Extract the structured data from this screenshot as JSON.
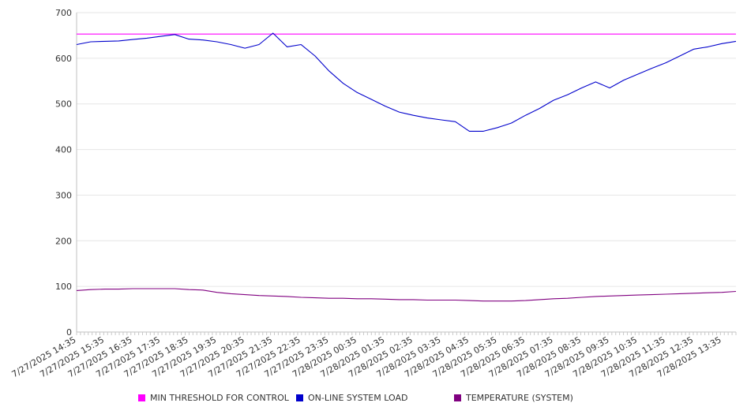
{
  "chart_data": {
    "type": "line",
    "title": "",
    "xlabel": "",
    "ylabel": "",
    "ylim": [
      0,
      700
    ],
    "yticks": [
      0,
      100,
      200,
      300,
      400,
      500,
      600,
      700
    ],
    "grid": "horizontal",
    "legend_position": "bottom",
    "x_tick_labels": [
      "7/27/2025 14:35",
      "7/27/2025 15:35",
      "7/27/2025 16:35",
      "7/27/2025 17:35",
      "7/27/2025 18:35",
      "7/27/2025 19:35",
      "7/27/2025 20:35",
      "7/27/2025 21:35",
      "7/27/2025 22:35",
      "7/27/2025 23:35",
      "7/28/2025 00:35",
      "7/28/2025 01:35",
      "7/28/2025 02:35",
      "7/28/2025 03:35",
      "7/28/2025 04:35",
      "7/28/2025 05:35",
      "7/28/2025 06:35",
      "7/28/2025 07:35",
      "7/28/2025 08:35",
      "7/28/2025 09:35",
      "7/28/2025 10:35",
      "7/28/2025 11:35",
      "7/28/2025 12:35",
      "7/28/2025 13:35"
    ],
    "x": [
      "7/27/2025 14:35",
      "7/27/2025 15:05",
      "7/27/2025 15:35",
      "7/27/2025 16:05",
      "7/27/2025 16:35",
      "7/27/2025 17:05",
      "7/27/2025 17:35",
      "7/27/2025 18:05",
      "7/27/2025 18:35",
      "7/27/2025 19:05",
      "7/27/2025 19:35",
      "7/27/2025 20:05",
      "7/27/2025 20:35",
      "7/27/2025 21:05",
      "7/27/2025 21:35",
      "7/27/2025 22:05",
      "7/27/2025 22:35",
      "7/27/2025 23:05",
      "7/27/2025 23:35",
      "7/28/2025 00:05",
      "7/28/2025 00:35",
      "7/28/2025 01:05",
      "7/28/2025 01:35",
      "7/28/2025 02:05",
      "7/28/2025 02:35",
      "7/28/2025 03:05",
      "7/28/2025 03:35",
      "7/28/2025 04:05",
      "7/28/2025 04:35",
      "7/28/2025 05:05",
      "7/28/2025 05:35",
      "7/28/2025 06:05",
      "7/28/2025 06:35",
      "7/28/2025 07:05",
      "7/28/2025 07:35",
      "7/28/2025 08:05",
      "7/28/2025 08:35",
      "7/28/2025 09:05",
      "7/28/2025 09:35",
      "7/28/2025 10:05",
      "7/28/2025 10:35",
      "7/28/2025 11:05",
      "7/28/2025 11:35",
      "7/28/2025 12:05",
      "7/28/2025 12:35",
      "7/28/2025 13:05",
      "7/28/2025 13:35",
      "7/28/2025 14:05"
    ],
    "series": [
      {
        "name": "MIN THRESHOLD FOR CONTROL",
        "color": "#ff00ff",
        "values": [
          653,
          653,
          653,
          653,
          653,
          653,
          653,
          653,
          653,
          653,
          653,
          653,
          653,
          653,
          653,
          653,
          653,
          653,
          653,
          653,
          653,
          653,
          653,
          653,
          653,
          653,
          653,
          653,
          653,
          653,
          653,
          653,
          653,
          653,
          653,
          653,
          653,
          653,
          653,
          653,
          653,
          653,
          653,
          653,
          653,
          653,
          653,
          653
        ]
      },
      {
        "name": "ON-LINE SYSTEM LOAD",
        "color": "#0000cc",
        "values": [
          630,
          636,
          637,
          638,
          641,
          644,
          648,
          652,
          642,
          640,
          636,
          630,
          622,
          630,
          655,
          625,
          630,
          605,
          572,
          545,
          525,
          510,
          495,
          482,
          475,
          469,
          465,
          461,
          440,
          440,
          448,
          458,
          475,
          490,
          508,
          520,
          535,
          548,
          535,
          552,
          565,
          578,
          590,
          605,
          620,
          625,
          632,
          637
        ]
      },
      {
        "name": "TEMPERATURE (SYSTEM)",
        "color": "#800080",
        "values": [
          91,
          93,
          94,
          94,
          95,
          95,
          95,
          95,
          93,
          92,
          87,
          84,
          82,
          80,
          79,
          78,
          76,
          75,
          74,
          74,
          73,
          73,
          72,
          71,
          71,
          70,
          70,
          70,
          69,
          68,
          68,
          68,
          69,
          71,
          73,
          74,
          76,
          78,
          79,
          80,
          81,
          82,
          83,
          84,
          85,
          86,
          87,
          89
        ]
      }
    ]
  },
  "legend": {
    "items": [
      {
        "label": "MIN THRESHOLD FOR CONTROL",
        "color": "#ff00ff"
      },
      {
        "label": "ON-LINE SYSTEM LOAD",
        "color": "#0000cc"
      },
      {
        "label": "TEMPERATURE (SYSTEM)",
        "color": "#800080"
      }
    ]
  }
}
